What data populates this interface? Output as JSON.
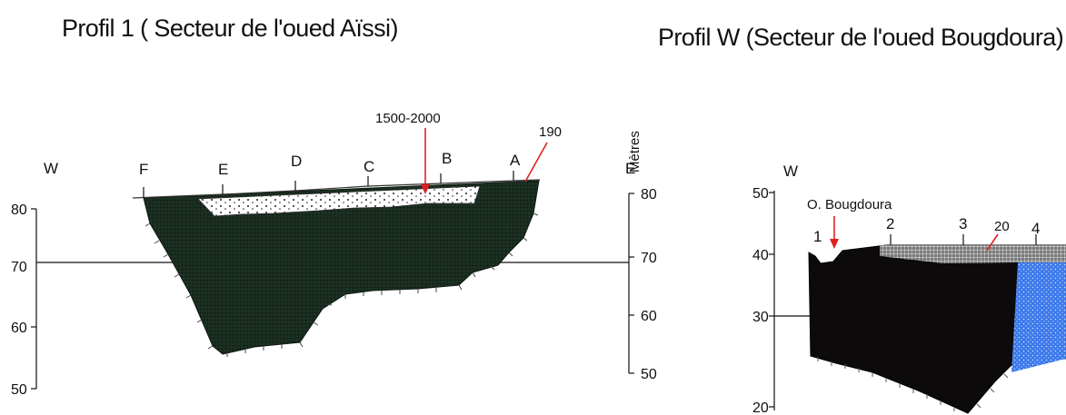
{
  "profile1": {
    "title": "Profil 1 ( Secteur de l'oued Aïssi)",
    "orientation_left": "W",
    "orientation_right": "E",
    "unit_label": "Mètres",
    "left_axis_ticks": [
      "80",
      "70",
      "60",
      "50"
    ],
    "right_axis_ticks": [
      "80",
      "70",
      "60",
      "50"
    ],
    "station_labels": [
      "F",
      "E",
      "D",
      "C",
      "B",
      "A"
    ],
    "annotation_range": "1500-2000",
    "annotation_value": "190",
    "colors": {
      "bedrock": "#1a2a1f",
      "alluvium": "#ffffff",
      "pointer": "#e02020"
    }
  },
  "profileW": {
    "title": "Profil W (Secteur de l'oued Bougdoura)",
    "orientation_left": "W",
    "river_label": "O. Bougdoura",
    "left_axis_ticks": [
      "50",
      "40",
      "30",
      "20"
    ],
    "station_labels": [
      "1",
      "2",
      "3",
      "4"
    ],
    "annotation_value": "20",
    "colors": {
      "bedrock": "#0c0a0a",
      "water": "#3a78e8",
      "pointer": "#e02020"
    }
  }
}
